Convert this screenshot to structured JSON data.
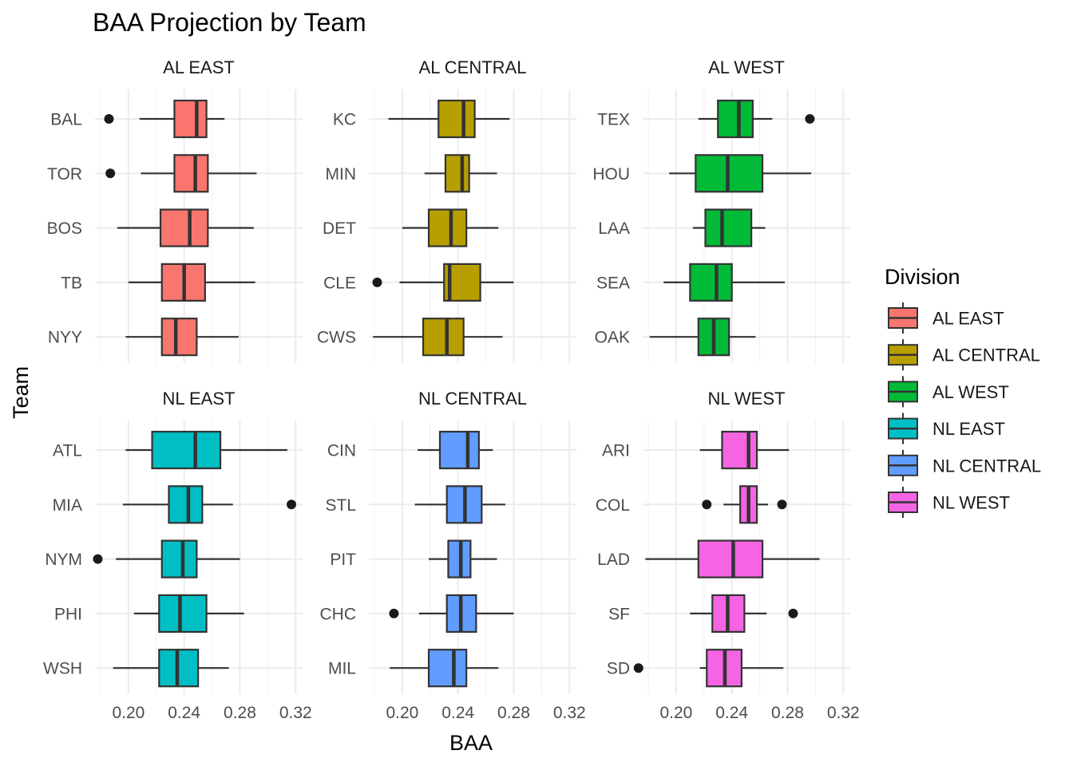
{
  "chart_data": {
    "type": "boxplot",
    "title": "BAA Projection by Team",
    "xlabel": "BAA",
    "ylabel": "Team",
    "xlim": [
      0.176,
      0.325
    ],
    "x_ticks": [
      "0.20",
      "0.24",
      "0.28",
      "0.32"
    ],
    "x_tick_values": [
      0.2,
      0.24,
      0.28,
      0.32
    ],
    "grid": true,
    "legend": {
      "title": "Division",
      "position": "right",
      "entries": [
        {
          "label": "AL EAST",
          "color": "#F8766D"
        },
        {
          "label": "AL CENTRAL",
          "color": "#B79F00"
        },
        {
          "label": "AL WEST",
          "color": "#00BA38"
        },
        {
          "label": "NL EAST",
          "color": "#00BFC4"
        },
        {
          "label": "NL CENTRAL",
          "color": "#619CFF"
        },
        {
          "label": "NL WEST",
          "color": "#F564E3"
        }
      ]
    },
    "panels": [
      {
        "division": "AL EAST",
        "color": "#F8766D",
        "teams": [
          {
            "team": "BAL",
            "whisker_low": 0.208,
            "q1": 0.233,
            "median": 0.249,
            "q3": 0.256,
            "whisker_high": 0.269,
            "outliers": [
              0.186
            ]
          },
          {
            "team": "TOR",
            "whisker_low": 0.209,
            "q1": 0.233,
            "median": 0.248,
            "q3": 0.257,
            "whisker_high": 0.292,
            "outliers": [
              0.187
            ]
          },
          {
            "team": "BOS",
            "whisker_low": 0.192,
            "q1": 0.223,
            "median": 0.244,
            "q3": 0.257,
            "whisker_high": 0.29,
            "outliers": []
          },
          {
            "team": "TB",
            "whisker_low": 0.2,
            "q1": 0.224,
            "median": 0.24,
            "q3": 0.255,
            "whisker_high": 0.291,
            "outliers": []
          },
          {
            "team": "NYY",
            "whisker_low": 0.198,
            "q1": 0.224,
            "median": 0.234,
            "q3": 0.249,
            "whisker_high": 0.279,
            "outliers": []
          }
        ]
      },
      {
        "division": "AL CENTRAL",
        "color": "#B79F00",
        "teams": [
          {
            "team": "KC",
            "whisker_low": 0.19,
            "q1": 0.226,
            "median": 0.244,
            "q3": 0.252,
            "whisker_high": 0.277,
            "outliers": []
          },
          {
            "team": "MIN",
            "whisker_low": 0.216,
            "q1": 0.231,
            "median": 0.243,
            "q3": 0.248,
            "whisker_high": 0.268,
            "outliers": []
          },
          {
            "team": "DET",
            "whisker_low": 0.2,
            "q1": 0.219,
            "median": 0.235,
            "q3": 0.246,
            "whisker_high": 0.269,
            "outliers": []
          },
          {
            "team": "CLE",
            "whisker_low": 0.198,
            "q1": 0.23,
            "median": 0.234,
            "q3": 0.256,
            "whisker_high": 0.28,
            "outliers": [
              0.182
            ]
          },
          {
            "team": "CWS",
            "whisker_low": 0.179,
            "q1": 0.215,
            "median": 0.232,
            "q3": 0.244,
            "whisker_high": 0.272,
            "outliers": []
          }
        ]
      },
      {
        "division": "AL WEST",
        "color": "#00BA38",
        "teams": [
          {
            "team": "TEX",
            "whisker_low": 0.216,
            "q1": 0.23,
            "median": 0.245,
            "q3": 0.255,
            "whisker_high": 0.269,
            "outliers": [
              0.296
            ]
          },
          {
            "team": "HOU",
            "whisker_low": 0.195,
            "q1": 0.214,
            "median": 0.237,
            "q3": 0.262,
            "whisker_high": 0.297,
            "outliers": []
          },
          {
            "team": "LAA",
            "whisker_low": 0.212,
            "q1": 0.221,
            "median": 0.233,
            "q3": 0.254,
            "whisker_high": 0.264,
            "outliers": []
          },
          {
            "team": "SEA",
            "whisker_low": 0.191,
            "q1": 0.21,
            "median": 0.229,
            "q3": 0.24,
            "whisker_high": 0.278,
            "outliers": []
          },
          {
            "team": "OAK",
            "whisker_low": 0.181,
            "q1": 0.216,
            "median": 0.227,
            "q3": 0.238,
            "whisker_high": 0.257,
            "outliers": []
          }
        ]
      },
      {
        "division": "NL EAST",
        "color": "#00BFC4",
        "teams": [
          {
            "team": "ATL",
            "whisker_low": 0.198,
            "q1": 0.217,
            "median": 0.248,
            "q3": 0.266,
            "whisker_high": 0.314,
            "outliers": []
          },
          {
            "team": "MIA",
            "whisker_low": 0.196,
            "q1": 0.229,
            "median": 0.243,
            "q3": 0.253,
            "whisker_high": 0.275,
            "outliers": [
              0.317
            ]
          },
          {
            "team": "NYM",
            "whisker_low": 0.191,
            "q1": 0.224,
            "median": 0.239,
            "q3": 0.249,
            "whisker_high": 0.28,
            "outliers": [
              0.178
            ]
          },
          {
            "team": "PHI",
            "whisker_low": 0.204,
            "q1": 0.222,
            "median": 0.237,
            "q3": 0.256,
            "whisker_high": 0.283,
            "outliers": []
          },
          {
            "team": "WSH",
            "whisker_low": 0.189,
            "q1": 0.222,
            "median": 0.235,
            "q3": 0.25,
            "whisker_high": 0.272,
            "outliers": []
          }
        ]
      },
      {
        "division": "NL CENTRAL",
        "color": "#619CFF",
        "teams": [
          {
            "team": "CIN",
            "whisker_low": 0.211,
            "q1": 0.227,
            "median": 0.247,
            "q3": 0.255,
            "whisker_high": 0.265,
            "outliers": []
          },
          {
            "team": "STL",
            "whisker_low": 0.209,
            "q1": 0.232,
            "median": 0.245,
            "q3": 0.257,
            "whisker_high": 0.274,
            "outliers": []
          },
          {
            "team": "PIT",
            "whisker_low": 0.219,
            "q1": 0.233,
            "median": 0.242,
            "q3": 0.249,
            "whisker_high": 0.268,
            "outliers": []
          },
          {
            "team": "CHC",
            "whisker_low": 0.212,
            "q1": 0.232,
            "median": 0.242,
            "q3": 0.253,
            "whisker_high": 0.28,
            "outliers": [
              0.194
            ]
          },
          {
            "team": "MIL",
            "whisker_low": 0.191,
            "q1": 0.219,
            "median": 0.237,
            "q3": 0.246,
            "whisker_high": 0.269,
            "outliers": []
          }
        ]
      },
      {
        "division": "NL WEST",
        "color": "#F564E3",
        "teams": [
          {
            "team": "ARI",
            "whisker_low": 0.217,
            "q1": 0.233,
            "median": 0.252,
            "q3": 0.258,
            "whisker_high": 0.281,
            "outliers": []
          },
          {
            "team": "COL",
            "whisker_low": 0.234,
            "q1": 0.246,
            "median": 0.252,
            "q3": 0.258,
            "whisker_high": 0.266,
            "outliers": [
              0.222,
              0.276
            ]
          },
          {
            "team": "LAD",
            "whisker_low": 0.178,
            "q1": 0.216,
            "median": 0.241,
            "q3": 0.262,
            "whisker_high": 0.303,
            "outliers": []
          },
          {
            "team": "SF",
            "whisker_low": 0.21,
            "q1": 0.226,
            "median": 0.237,
            "q3": 0.249,
            "whisker_high": 0.265,
            "outliers": [
              0.284
            ]
          },
          {
            "team": "SD",
            "whisker_low": 0.217,
            "q1": 0.222,
            "median": 0.235,
            "q3": 0.247,
            "whisker_high": 0.277,
            "outliers": [
              0.173
            ]
          }
        ]
      }
    ]
  }
}
